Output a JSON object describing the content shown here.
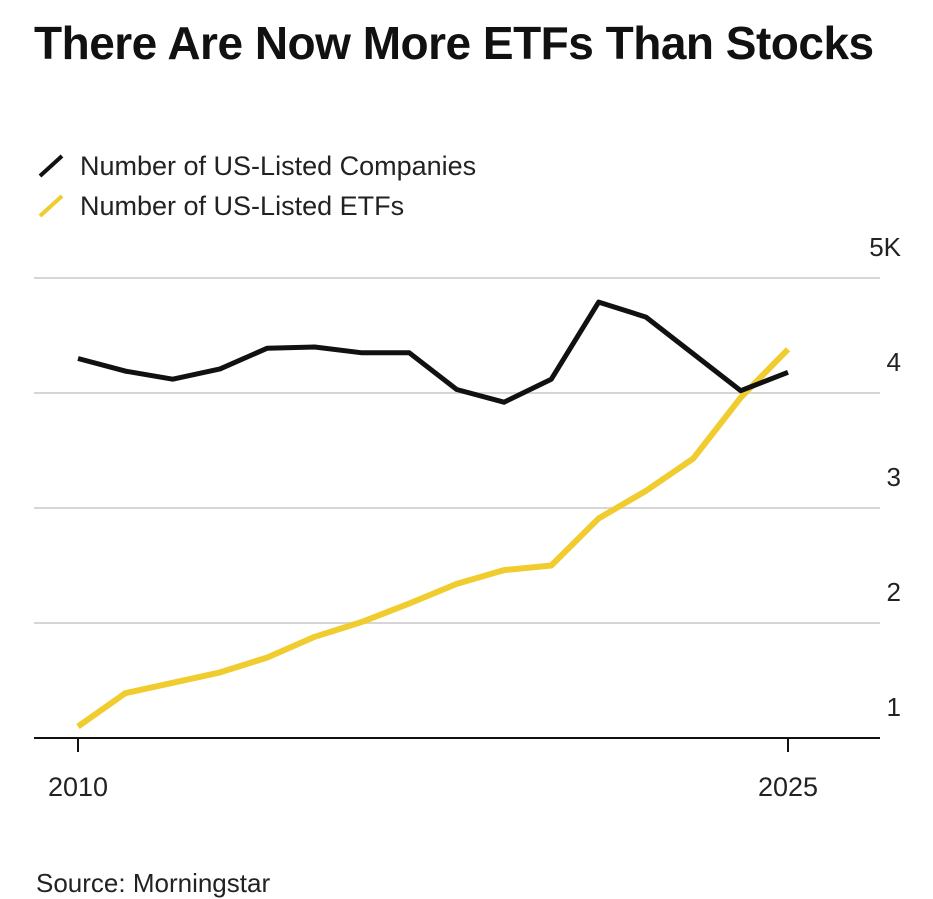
{
  "chart_data": {
    "type": "line",
    "title": "There Are Now More ETFs Than Stocks",
    "source": "Source: Morningstar",
    "x": [
      2010,
      2011,
      2012,
      2013,
      2014,
      2015,
      2016,
      2017,
      2018,
      2019,
      2020,
      2021,
      2022,
      2023,
      2024,
      2025
    ],
    "x_tick_labels": [
      "2010",
      "2025"
    ],
    "y_tick_labels": [
      "1",
      "2",
      "3",
      "4",
      "5K"
    ],
    "ylim": [
      1,
      5
    ],
    "grid": true,
    "legend_position": "top-left",
    "series": [
      {
        "name": "Number of US-Listed Companies",
        "color": "#111111",
        "values": [
          4.3,
          4.19,
          4.12,
          4.21,
          4.39,
          4.4,
          4.35,
          4.35,
          4.03,
          3.92,
          4.12,
          4.79,
          4.66,
          4.34,
          4.02,
          4.18
        ]
      },
      {
        "name": "Number of US-Listed ETFs",
        "color": "#f0cc2e",
        "values": [
          1.1,
          1.39,
          1.48,
          1.57,
          1.7,
          1.88,
          2.01,
          2.17,
          2.34,
          2.46,
          2.5,
          2.91,
          3.15,
          3.43,
          3.96,
          4.38
        ]
      }
    ]
  }
}
